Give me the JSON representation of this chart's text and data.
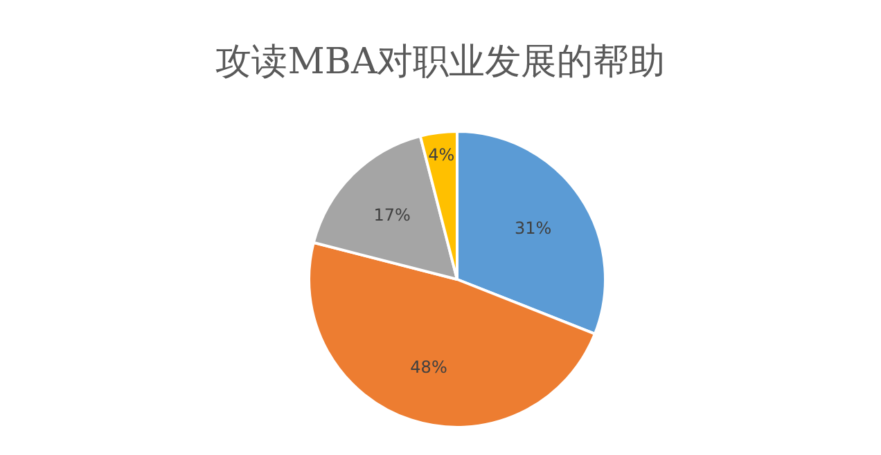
{
  "chart_data": {
    "type": "pie",
    "title": "攻读MBA对职业发展的帮助",
    "categories": [
      null,
      null,
      null,
      null
    ],
    "values": [
      31,
      48,
      17,
      4
    ],
    "colors": [
      "#5b9bd5",
      "#ed7d31",
      "#a5a5a5",
      "#ffc000"
    ],
    "value_labels": [
      "31%",
      "48%",
      "17%",
      "4%"
    ]
  }
}
